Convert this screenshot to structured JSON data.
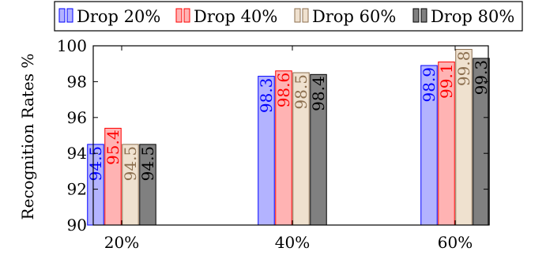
{
  "chart_data": {
    "type": "bar",
    "title": "",
    "xlabel": "",
    "ylabel": "Recognition Rates %",
    "categories": [
      "20%",
      "40%",
      "60%"
    ],
    "ylim": [
      90,
      100
    ],
    "yticks": [
      90,
      92,
      94,
      96,
      98,
      100
    ],
    "grid": false,
    "legend_position": "top",
    "series": [
      {
        "name": "Drop 20%",
        "values": [
          94.5,
          98.3,
          98.9
        ],
        "labels": [
          "94.5",
          "98.3",
          "98.9"
        ],
        "fill": "#b3b3ff",
        "stroke": "#0000ff",
        "text_color": "#0000ff"
      },
      {
        "name": "Drop 40%",
        "values": [
          95.4,
          98.6,
          99.1
        ],
        "labels": [
          "95.4",
          "98.6",
          "99.1"
        ],
        "fill": "#ffb3b3",
        "stroke": "#ff0000",
        "text_color": "#ff0000"
      },
      {
        "name": "Drop 60%",
        "values": [
          94.5,
          98.5,
          99.8
        ],
        "labels": [
          "94.5",
          "98.5",
          "99.8"
        ],
        "fill": "#efe1cf",
        "stroke": "#8c6f4f",
        "text_color": "#8c6f4f"
      },
      {
        "name": "Drop 80%",
        "values": [
          94.5,
          98.4,
          99.3
        ],
        "labels": [
          "94.5",
          "98.4",
          "99.3"
        ],
        "fill": "#808080",
        "stroke": "#000000",
        "text_color": "#000000"
      }
    ]
  }
}
